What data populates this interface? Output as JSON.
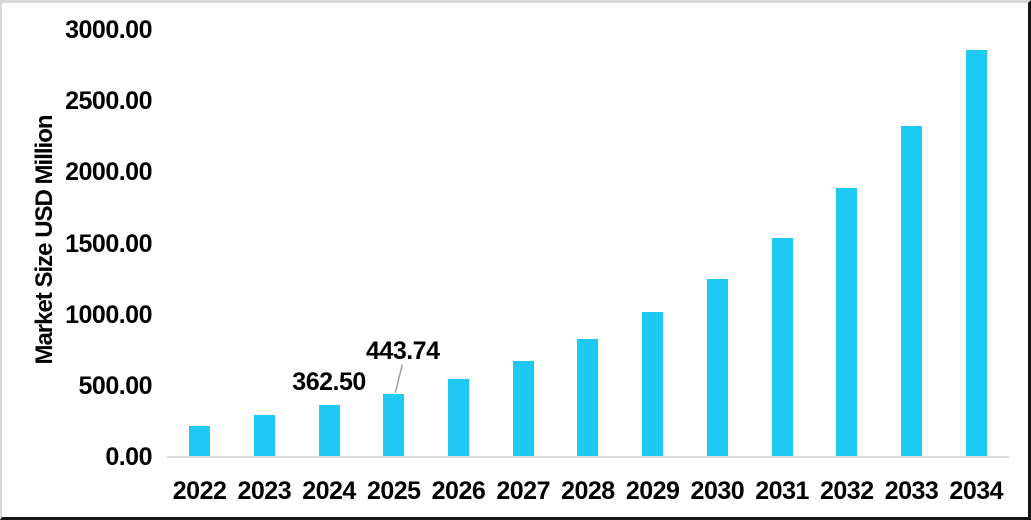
{
  "chart_data": {
    "type": "bar",
    "title": "",
    "xlabel": "",
    "ylabel": "Market Size USD Million",
    "categories": [
      "2022",
      "2023",
      "2024",
      "2025",
      "2026",
      "2027",
      "2028",
      "2029",
      "2030",
      "2031",
      "2032",
      "2033",
      "2034"
    ],
    "series": [
      {
        "name": "Market Size USD Million",
        "values": [
          220.0,
          293.0,
          362.5,
          443.74,
          545.8,
          671.33,
          825.74,
          1015.66,
          1249.26,
          1536.59,
          1890.01,
          2324.71,
          2859.39
        ]
      }
    ],
    "ylim": [
      0,
      3000
    ],
    "ytick_step": 500,
    "ytick_labels": [
      "0.00",
      "500.00",
      "1000.00",
      "1500.00",
      "2000.00",
      "2500.00",
      "3000.00"
    ],
    "grid": false,
    "legend": false,
    "bar_color": "#1EC9F5",
    "axis_line_color": "#D9D9D9",
    "leader_line_color": "#A6A6A6",
    "text_color": "#000000",
    "data_labels": [
      {
        "category": "2024",
        "text": "362.50",
        "leader_line": false
      },
      {
        "category": "2025",
        "text": "443.74",
        "leader_line": true
      }
    ]
  }
}
